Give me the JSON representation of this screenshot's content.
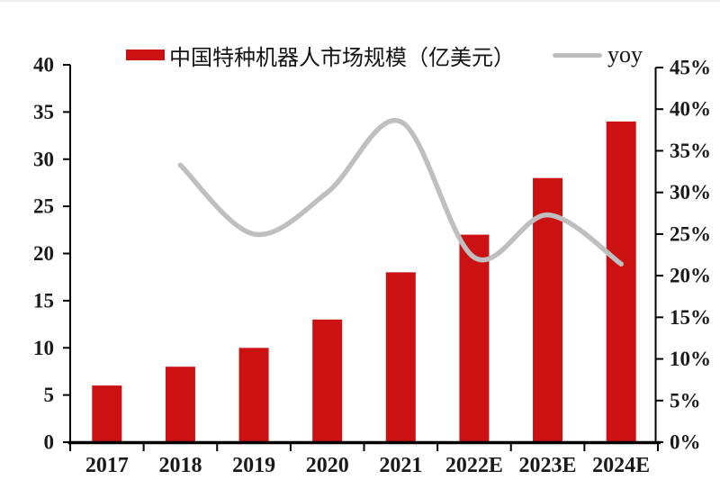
{
  "chart_data": {
    "type": "combo-bar-line",
    "title": "",
    "categories": [
      "2017",
      "2018",
      "2019",
      "2020",
      "2021",
      "2022E",
      "2023E",
      "2024E"
    ],
    "series": [
      {
        "name": "中国特种机器人市场规模（亿美元）",
        "type": "bar",
        "y_axis": "left",
        "color": "#cb1111",
        "values": [
          6,
          8,
          10,
          13,
          18,
          22,
          28,
          34
        ]
      },
      {
        "name": "yoy",
        "type": "line",
        "y_axis": "right",
        "unit": "%",
        "color": "#bfbfbf",
        "values": [
          null,
          33.3,
          25.0,
          30.0,
          38.5,
          22.2,
          27.3,
          21.4
        ]
      }
    ],
    "left_axis": {
      "min": 0,
      "max": 40,
      "tick_step": 5,
      "tick_labels": [
        "40",
        "35",
        "30",
        "25",
        "20",
        "15",
        "10",
        "5",
        "0"
      ]
    },
    "right_axis": {
      "min": 0,
      "max": 45,
      "tick_step": 5,
      "format": "percent",
      "tick_labels": [
        "45%",
        "40%",
        "35%",
        "30%",
        "25%",
        "20%",
        "15%",
        "10%",
        "5%",
        "0%"
      ]
    },
    "x_axis": {
      "tick_labels": [
        "2017",
        "2018",
        "2019",
        "2020",
        "2021",
        "2022E",
        "2023E",
        "2024E"
      ]
    },
    "grid": false,
    "legend_position": "top-center",
    "colors": {
      "axis": "#000000",
      "label_text": "#1a1a1a",
      "bar_red": "#cb1111",
      "line_gray": "#bfbfbf"
    }
  }
}
